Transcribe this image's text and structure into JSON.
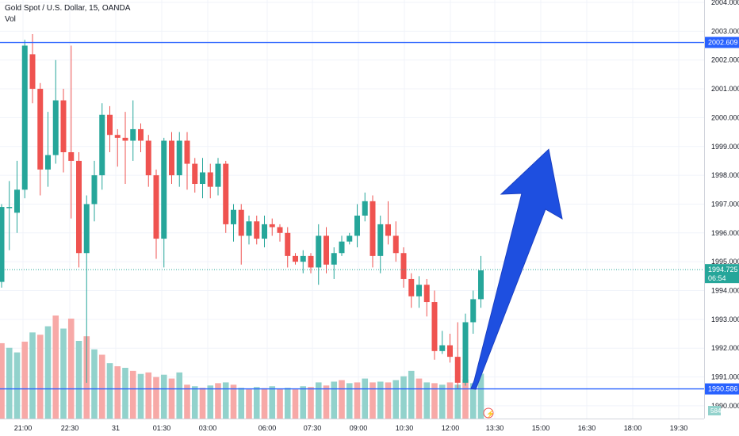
{
  "header": {
    "symbol_line": "Gold Spot / U.S. Dollar, 15, OANDA",
    "volume_label": "Vol"
  },
  "colors": {
    "up": "#26a69a",
    "down": "#ef5350",
    "up_volume": "#92d2cc",
    "down_volume": "#f7a9a7",
    "line": "#2962ff",
    "arrow": "#1e4fe0",
    "price_tag": "#26a69a"
  },
  "price_axis": {
    "ticks": [
      "2004.000",
      "2003.000",
      "2002.000",
      "2001.000",
      "2000.000",
      "1999.000",
      "1998.000",
      "1997.000",
      "1996.000",
      "1995.000",
      "1994.000",
      "1993.000",
      "1992.000",
      "1991.000",
      "1990.000"
    ]
  },
  "time_axis": {
    "ticks": [
      "21:00",
      "22:30",
      "31",
      "01:30",
      "03:00",
      "06:00",
      "07:30",
      "09:00",
      "10:30",
      "12:00",
      "13:30",
      "15:00",
      "16:30",
      "18:00",
      "19:30"
    ]
  },
  "horizontal_lines": [
    {
      "label": "2002.609",
      "price": 2002.609
    },
    {
      "label": "1990.586",
      "price": 1990.586
    }
  ],
  "current_price": {
    "label": "1994.725",
    "price": 1994.725,
    "countdown": "06:54"
  },
  "volume_tag": "584",
  "annotation": {
    "type": "arrow",
    "direction": "up",
    "from_price": 1990.6,
    "to_price": 1998.9
  },
  "chart_data": {
    "type": "candlestick",
    "title": "Gold Spot / U.S. Dollar, 15, OANDA",
    "interval": "15",
    "ylim": [
      1989.8,
      2004.0
    ],
    "candles": [
      [
        1994.3,
        1996.9,
        1994.1,
        1997.0
      ],
      [
        1996.9,
        1996.9,
        1995.4,
        1997.8
      ],
      [
        1996.7,
        1997.5,
        1996.0,
        1998.5
      ],
      [
        1997.5,
        2002.5,
        1997.2,
        2002.7
      ],
      [
        2002.2,
        2001.0,
        2000.5,
        2002.9
      ],
      [
        2001.0,
        1998.2,
        1997.3,
        2001.2
      ],
      [
        1998.2,
        1998.7,
        1997.6,
        2000.2
      ],
      [
        1998.7,
        2000.6,
        1998.4,
        2002.0
      ],
      [
        2000.6,
        1998.8,
        1998.1,
        2001.0
      ],
      [
        1998.8,
        1998.5,
        1996.5,
        2002.5
      ],
      [
        1998.5,
        1995.3,
        1994.8,
        1998.8
      ],
      [
        1995.3,
        1997.0,
        1990.8,
        1997.3
      ],
      [
        1997.0,
        1998.0,
        1996.4,
        1998.5
      ],
      [
        1998.0,
        2000.1,
        1997.5,
        2000.5
      ],
      [
        2000.1,
        1999.4,
        1998.8,
        2000.4
      ],
      [
        1999.4,
        1999.3,
        1998.3,
        1999.6
      ],
      [
        1999.3,
        1999.2,
        1997.7,
        2000.2
      ],
      [
        1999.2,
        1999.6,
        1998.5,
        2000.6
      ],
      [
        1999.6,
        1999.2,
        1998.8,
        1999.8
      ],
      [
        1999.2,
        1998.0,
        1997.6,
        1999.4
      ],
      [
        1998.0,
        1995.8,
        1995.1,
        1998.2
      ],
      [
        1995.8,
        1999.2,
        1994.8,
        1999.3
      ],
      [
        1999.2,
        1998.0,
        1997.7,
        1999.5
      ],
      [
        1998.0,
        1999.2,
        1997.6,
        1999.5
      ],
      [
        1999.2,
        1998.4,
        1997.5,
        1999.5
      ],
      [
        1998.4,
        1997.7,
        1997.4,
        1998.6
      ],
      [
        1997.7,
        1998.1,
        1997.2,
        1998.6
      ],
      [
        1998.1,
        1997.6,
        1997.2,
        1998.4
      ],
      [
        1997.6,
        1998.4,
        1997.3,
        1998.6
      ],
      [
        1998.4,
        1996.3,
        1996.0,
        1998.5
      ],
      [
        1996.3,
        1996.8,
        1995.7,
        1997.0
      ],
      [
        1996.8,
        1995.9,
        1994.9,
        1997.0
      ],
      [
        1995.9,
        1996.4,
        1995.6,
        1996.6
      ],
      [
        1996.4,
        1995.8,
        1995.6,
        1996.6
      ],
      [
        1995.8,
        1996.3,
        1995.5,
        1996.6
      ],
      [
        1996.3,
        1996.2,
        1995.9,
        1996.5
      ],
      [
        1996.2,
        1996.0,
        1995.7,
        1996.3
      ],
      [
        1996.0,
        1995.2,
        1994.8,
        1996.2
      ],
      [
        1995.2,
        1995.0,
        1994.9,
        1995.3
      ],
      [
        1995.0,
        1995.2,
        1994.6,
        1995.4
      ],
      [
        1995.2,
        1994.8,
        1994.6,
        1995.3
      ],
      [
        1994.8,
        1995.9,
        1994.2,
        1996.3
      ],
      [
        1995.9,
        1994.9,
        1994.6,
        1996.2
      ],
      [
        1994.9,
        1995.3,
        1994.4,
        1995.5
      ],
      [
        1995.3,
        1995.7,
        1995.2,
        1995.9
      ],
      [
        1995.7,
        1995.9,
        1995.6,
        1996.0
      ],
      [
        1995.9,
        1996.6,
        1995.5,
        1997.0
      ],
      [
        1996.6,
        1997.1,
        1996.4,
        1997.4
      ],
      [
        1997.1,
        1995.2,
        1994.8,
        1997.3
      ],
      [
        1995.2,
        1996.3,
        1994.6,
        1996.6
      ],
      [
        1996.3,
        1995.9,
        1995.6,
        1997.1
      ],
      [
        1995.9,
        1995.3,
        1995.0,
        1996.4
      ],
      [
        1995.3,
        1994.4,
        1994.1,
        1995.5
      ],
      [
        1994.4,
        1993.8,
        1993.4,
        1994.6
      ],
      [
        1993.8,
        1994.2,
        1993.4,
        1994.5
      ],
      [
        1994.2,
        1993.6,
        1993.1,
        1994.4
      ],
      [
        1993.6,
        1991.9,
        1991.6,
        1994.0
      ],
      [
        1991.9,
        1992.1,
        1991.8,
        1992.6
      ],
      [
        1992.1,
        1991.7,
        1991.5,
        1992.5
      ],
      [
        1991.7,
        1990.8,
        1990.6,
        1992.9
      ],
      [
        1990.8,
        1992.9,
        1990.7,
        1993.2
      ],
      [
        1992.9,
        1993.7,
        1992.5,
        1994.0
      ],
      [
        1993.7,
        1994.7,
        1993.4,
        1995.2
      ]
    ],
    "volumes": [
      [
        980,
        "down"
      ],
      [
        920,
        "up"
      ],
      [
        860,
        "up"
      ],
      [
        1000,
        "down"
      ],
      [
        1120,
        "up"
      ],
      [
        1090,
        "down"
      ],
      [
        1200,
        "up"
      ],
      [
        1340,
        "down"
      ],
      [
        1170,
        "up"
      ],
      [
        1300,
        "down"
      ],
      [
        1010,
        "up"
      ],
      [
        1070,
        "down"
      ],
      [
        900,
        "up"
      ],
      [
        830,
        "down"
      ],
      [
        720,
        "up"
      ],
      [
        680,
        "down"
      ],
      [
        660,
        "up"
      ],
      [
        620,
        "down"
      ],
      [
        580,
        "up"
      ],
      [
        600,
        "down"
      ],
      [
        540,
        "down"
      ],
      [
        570,
        "up"
      ],
      [
        520,
        "down"
      ],
      [
        600,
        "up"
      ],
      [
        440,
        "down"
      ],
      [
        420,
        "up"
      ],
      [
        400,
        "down"
      ],
      [
        430,
        "up"
      ],
      [
        460,
        "down"
      ],
      [
        470,
        "up"
      ],
      [
        440,
        "down"
      ],
      [
        400,
        "up"
      ],
      [
        380,
        "down"
      ],
      [
        410,
        "up"
      ],
      [
        395,
        "down"
      ],
      [
        420,
        "up"
      ],
      [
        390,
        "down"
      ],
      [
        400,
        "up"
      ],
      [
        380,
        "down"
      ],
      [
        420,
        "up"
      ],
      [
        410,
        "down"
      ],
      [
        470,
        "up"
      ],
      [
        430,
        "down"
      ],
      [
        480,
        "up"
      ],
      [
        500,
        "down"
      ],
      [
        460,
        "up"
      ],
      [
        470,
        "down"
      ],
      [
        520,
        "up"
      ],
      [
        470,
        "down"
      ],
      [
        480,
        "up"
      ],
      [
        470,
        "down"
      ],
      [
        500,
        "up"
      ],
      [
        550,
        "up"
      ],
      [
        620,
        "up"
      ],
      [
        520,
        "down"
      ],
      [
        470,
        "up"
      ],
      [
        460,
        "down"
      ],
      [
        440,
        "up"
      ],
      [
        470,
        "down"
      ],
      [
        440,
        "up"
      ],
      [
        510,
        "down"
      ],
      [
        460,
        "up"
      ],
      [
        584,
        "up"
      ]
    ]
  }
}
